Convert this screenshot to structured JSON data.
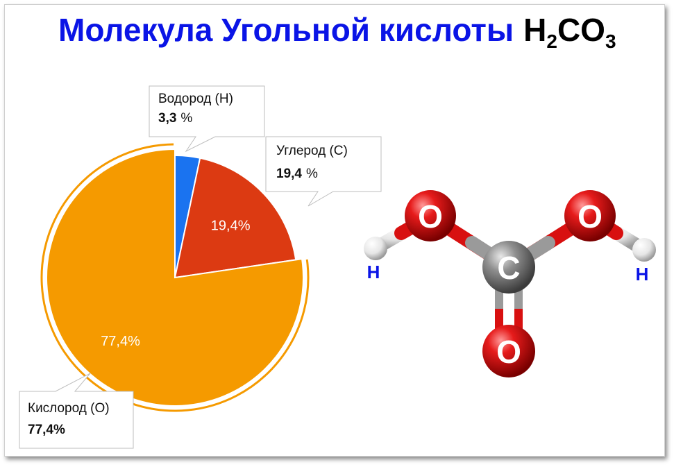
{
  "title": {
    "main": "Молекула Угольной кислоты",
    "formula_h": "H",
    "formula_h_sub": "2",
    "formula_co": "CO",
    "formula_co_sub": "3"
  },
  "chart_data": {
    "type": "pie",
    "title": "Молекула Угольной кислоты H2CO3",
    "slices": [
      {
        "label": "Водород (H)",
        "value": 3.3,
        "value_text": "3,3",
        "unit": "%",
        "inner_label": "",
        "color": "#1a73f0"
      },
      {
        "label": "Углерод (C)",
        "value": 19.4,
        "value_text": "19,4",
        "unit": "%",
        "inner_label": "19,4%",
        "color": "#dc3a12"
      },
      {
        "label": "Кислород (O)",
        "value": 77.4,
        "value_text": "77,4%",
        "unit": "",
        "inner_label": "77,4%",
        "color": "#f59a00"
      }
    ]
  },
  "molecule": {
    "atoms": [
      {
        "id": "c",
        "symbol": "C"
      },
      {
        "id": "o1",
        "symbol": "O"
      },
      {
        "id": "o2",
        "symbol": "O"
      },
      {
        "id": "o3",
        "symbol": "O"
      },
      {
        "id": "h1",
        "symbol": "H"
      },
      {
        "id": "h2",
        "symbol": "H"
      }
    ],
    "h_labels": [
      "H",
      "H"
    ]
  },
  "colors": {
    "oxygen": "#dd1010",
    "carbon": "#8a8a8a",
    "hydrogen": "#ffffff",
    "label_blue": "#0a14e6"
  }
}
